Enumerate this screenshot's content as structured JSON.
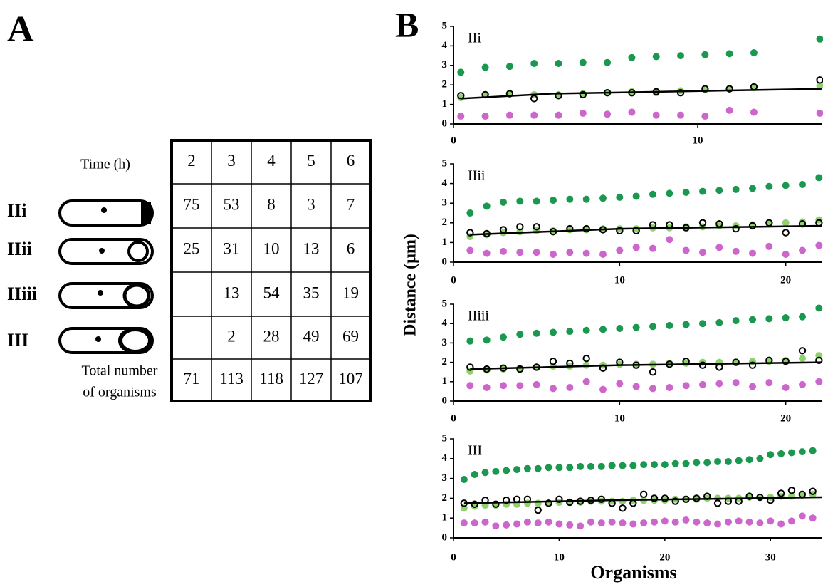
{
  "figure": {
    "panel_a": "A",
    "panel_b": "B",
    "ylabel": "Distance (µm)",
    "xlabel": "Organisms"
  },
  "table": {
    "header_label": "Time (h)",
    "header": [
      2,
      3,
      4,
      5,
      6
    ],
    "rows": [
      {
        "label": "IIi",
        "cells": [
          75,
          53,
          8,
          3,
          7
        ]
      },
      {
        "label": "IIii",
        "cells": [
          25,
          31,
          10,
          13,
          6
        ]
      },
      {
        "label": "IIiii",
        "cells": [
          null,
          13,
          54,
          35,
          19
        ]
      },
      {
        "label": "III",
        "cells": [
          null,
          2,
          28,
          49,
          69
        ]
      }
    ],
    "total_label": [
      "Total number",
      "of organisms"
    ],
    "totals": [
      71,
      113,
      118,
      127,
      107
    ]
  },
  "chart_data": [
    {
      "type": "scatter",
      "title": "IIi",
      "xlim": [
        0,
        15.1
      ],
      "xticks": [
        0,
        10
      ],
      "ylim": [
        0,
        5
      ],
      "yticks": [
        0,
        1,
        2,
        3,
        4,
        5
      ],
      "x": [
        0.3,
        1.3,
        2.3,
        3.3,
        4.3,
        5.3,
        6.3,
        7.3,
        8.3,
        9.3,
        10.3,
        11.3,
        12.3,
        15
      ],
      "series": [
        {
          "color": "#8fd16a",
          "marker": "dot",
          "values": [
            1.35,
            1.5,
            1.55,
            1.5,
            1.5,
            1.55,
            1.6,
            1.65,
            1.6,
            1.7,
            1.75,
            1.8,
            1.85,
            1.95
          ]
        },
        {
          "color": "#cc66cc",
          "marker": "dot",
          "values": [
            0.4,
            0.4,
            0.45,
            0.45,
            0.45,
            0.55,
            0.5,
            0.6,
            0.45,
            0.45,
            0.4,
            0.7,
            0.6,
            0.55
          ]
        },
        {
          "color": "#1a9850",
          "marker": "dot",
          "values": [
            2.65,
            2.9,
            2.95,
            3.1,
            3.1,
            3.15,
            3.15,
            3.4,
            3.45,
            3.5,
            3.55,
            3.6,
            3.65,
            4.35
          ]
        },
        {
          "color": "#000000",
          "marker": "open",
          "values": [
            1.45,
            1.5,
            1.55,
            1.3,
            1.45,
            1.5,
            1.6,
            1.6,
            1.65,
            1.6,
            1.8,
            1.8,
            1.9,
            2.25
          ]
        }
      ],
      "fit": {
        "color": "#000000",
        "x": [
          0.3,
          4,
          15.1
        ],
        "values": [
          1.3,
          1.55,
          1.8
        ]
      }
    },
    {
      "type": "scatter",
      "title": "IIii",
      "xlim": [
        0,
        22.2
      ],
      "xticks": [
        0,
        10,
        20
      ],
      "ylim": [
        0,
        5
      ],
      "yticks": [
        0,
        1,
        2,
        3,
        4,
        5
      ],
      "x": [
        1,
        2,
        3,
        4,
        5,
        6,
        7,
        8,
        9,
        10,
        11,
        12,
        13,
        14,
        15,
        16,
        17,
        18,
        19,
        20,
        21,
        22
      ],
      "series": [
        {
          "color": "#8fd16a",
          "marker": "dot",
          "values": [
            1.3,
            1.4,
            1.5,
            1.55,
            1.6,
            1.6,
            1.65,
            1.65,
            1.7,
            1.7,
            1.7,
            1.75,
            1.75,
            1.8,
            1.8,
            1.85,
            1.85,
            1.9,
            1.95,
            2.0,
            2.05,
            2.15
          ]
        },
        {
          "color": "#cc66cc",
          "marker": "dot",
          "values": [
            0.6,
            0.45,
            0.55,
            0.5,
            0.5,
            0.4,
            0.5,
            0.45,
            0.4,
            0.6,
            0.75,
            0.7,
            1.15,
            0.6,
            0.5,
            0.75,
            0.55,
            0.45,
            0.8,
            0.4,
            0.6,
            0.85
          ]
        },
        {
          "color": "#1a9850",
          "marker": "dot",
          "values": [
            2.5,
            2.85,
            3.05,
            3.1,
            3.1,
            3.15,
            3.2,
            3.2,
            3.25,
            3.3,
            3.35,
            3.45,
            3.5,
            3.55,
            3.6,
            3.65,
            3.7,
            3.75,
            3.85,
            3.9,
            3.95,
            4.3
          ]
        },
        {
          "color": "#000000",
          "marker": "open",
          "values": [
            1.5,
            1.45,
            1.65,
            1.8,
            1.8,
            1.55,
            1.7,
            1.7,
            1.65,
            1.6,
            1.6,
            1.9,
            1.9,
            1.75,
            2.0,
            1.95,
            1.7,
            1.85,
            2.0,
            1.5,
            1.95,
            2.0
          ]
        }
      ],
      "fit": {
        "color": "#000000",
        "x": [
          1,
          10,
          22.2
        ],
        "values": [
          1.4,
          1.7,
          1.85
        ]
      }
    },
    {
      "type": "scatter",
      "title": "IIiii",
      "xlim": [
        0,
        22.2
      ],
      "xticks": [
        0,
        10,
        20
      ],
      "ylim": [
        0,
        5
      ],
      "yticks": [
        0,
        1,
        2,
        3,
        4,
        5
      ],
      "x": [
        1,
        2,
        3,
        4,
        5,
        6,
        7,
        8,
        9,
        10,
        11,
        12,
        13,
        14,
        15,
        16,
        17,
        18,
        19,
        20,
        21,
        22
      ],
      "series": [
        {
          "color": "#8fd16a",
          "marker": "dot",
          "values": [
            1.55,
            1.6,
            1.65,
            1.7,
            1.75,
            1.8,
            1.8,
            1.85,
            1.85,
            1.9,
            1.9,
            1.9,
            1.95,
            1.95,
            2.0,
            2.0,
            2.0,
            2.05,
            2.05,
            2.1,
            2.2,
            2.35
          ]
        },
        {
          "color": "#cc66cc",
          "marker": "dot",
          "values": [
            0.8,
            0.7,
            0.8,
            0.8,
            0.85,
            0.65,
            0.7,
            1.0,
            0.6,
            0.9,
            0.75,
            0.65,
            0.7,
            0.8,
            0.85,
            0.9,
            0.95,
            0.75,
            0.95,
            0.7,
            0.85,
            1.0
          ]
        },
        {
          "color": "#1a9850",
          "marker": "dot",
          "values": [
            3.1,
            3.15,
            3.3,
            3.45,
            3.5,
            3.55,
            3.6,
            3.65,
            3.7,
            3.75,
            3.8,
            3.85,
            3.9,
            3.95,
            4.0,
            4.05,
            4.15,
            4.2,
            4.25,
            4.3,
            4.35,
            4.8
          ]
        },
        {
          "color": "#000000",
          "marker": "open",
          "values": [
            1.75,
            1.65,
            1.7,
            1.65,
            1.75,
            2.05,
            1.95,
            2.2,
            1.7,
            2.0,
            1.85,
            1.5,
            1.9,
            2.05,
            1.85,
            1.75,
            2.0,
            1.85,
            2.1,
            2.05,
            2.6,
            2.1
          ]
        }
      ],
      "fit": {
        "color": "#000000",
        "x": [
          1,
          10,
          22.2
        ],
        "values": [
          1.65,
          1.85,
          2.0
        ]
      }
    },
    {
      "type": "scatter",
      "title": "III",
      "xlim": [
        0,
        34.9
      ],
      "xticks": [
        0,
        10,
        20,
        30
      ],
      "ylim": [
        0,
        5
      ],
      "yticks": [
        0,
        1,
        2,
        3,
        4,
        5
      ],
      "x": [
        1,
        2,
        3,
        4,
        5,
        6,
        7,
        8,
        9,
        10,
        11,
        12,
        13,
        14,
        15,
        16,
        17,
        18,
        19,
        20,
        21,
        22,
        23,
        24,
        25,
        26,
        27,
        28,
        29,
        30,
        31,
        32,
        33,
        34
      ],
      "series": [
        {
          "color": "#8fd16a",
          "marker": "dot",
          "values": [
            1.5,
            1.6,
            1.65,
            1.65,
            1.7,
            1.7,
            1.75,
            1.75,
            1.75,
            1.8,
            1.8,
            1.8,
            1.85,
            1.85,
            1.85,
            1.85,
            1.9,
            1.9,
            1.9,
            1.9,
            1.95,
            1.95,
            1.95,
            2.0,
            2.0,
            2.0,
            2.0,
            2.05,
            2.05,
            2.05,
            2.1,
            2.1,
            2.15,
            2.2
          ]
        },
        {
          "color": "#cc66cc",
          "marker": "dot",
          "values": [
            0.75,
            0.75,
            0.8,
            0.6,
            0.65,
            0.7,
            0.8,
            0.75,
            0.8,
            0.7,
            0.65,
            0.6,
            0.8,
            0.75,
            0.8,
            0.75,
            0.7,
            0.75,
            0.8,
            0.85,
            0.8,
            0.9,
            0.8,
            0.75,
            0.7,
            0.8,
            0.85,
            0.8,
            0.75,
            0.85,
            0.7,
            0.85,
            1.1,
            1.0
          ]
        },
        {
          "color": "#1a9850",
          "marker": "dot",
          "values": [
            2.95,
            3.2,
            3.3,
            3.35,
            3.4,
            3.45,
            3.5,
            3.5,
            3.55,
            3.55,
            3.55,
            3.6,
            3.6,
            3.6,
            3.65,
            3.65,
            3.65,
            3.7,
            3.7,
            3.7,
            3.75,
            3.75,
            3.8,
            3.8,
            3.85,
            3.85,
            3.9,
            3.95,
            4.0,
            4.2,
            4.25,
            4.3,
            4.35,
            4.4
          ]
        },
        {
          "color": "#000000",
          "marker": "open",
          "values": [
            1.75,
            1.7,
            1.9,
            1.7,
            1.9,
            1.95,
            1.95,
            1.4,
            1.75,
            1.95,
            1.8,
            1.85,
            1.9,
            1.95,
            1.75,
            1.5,
            1.75,
            2.2,
            2.0,
            2.0,
            1.85,
            1.95,
            2.0,
            2.1,
            1.75,
            1.85,
            1.85,
            2.1,
            2.05,
            1.9,
            2.25,
            2.4,
            2.2,
            2.35
          ]
        }
      ],
      "fit": {
        "color": "#000000",
        "x": [
          1,
          15,
          34.9
        ],
        "values": [
          1.75,
          1.9,
          2.05
        ]
      }
    }
  ]
}
